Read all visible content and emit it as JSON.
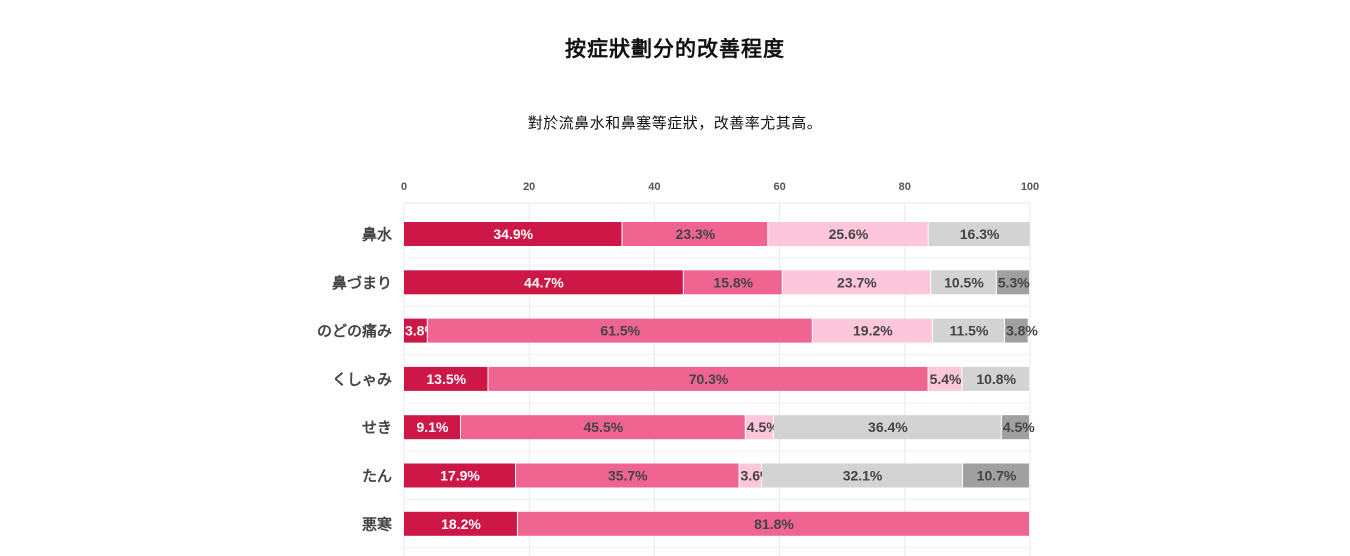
{
  "title": "按症狀劃分的改善程度",
  "subtitle": "對於流鼻水和鼻塞等症狀，改善率尤其高。",
  "colors": {
    "s1": "#cc1747",
    "s2": "#f06492",
    "s3": "#fdc6da",
    "s4": "#d3d3d3",
    "s5": "#a0a0a0",
    "grid": "#e8e8e8",
    "label_light": "#ffffff",
    "label_dark": "#444444"
  },
  "chart_data": {
    "type": "bar",
    "orientation": "horizontal",
    "stacked": true,
    "xlim": [
      0,
      100
    ],
    "xticks": [
      "0",
      "20",
      "40",
      "60",
      "80",
      "100"
    ],
    "categories": [
      "鼻水",
      "鼻づまり",
      "のどの痛み",
      "くしゃみ",
      "せき",
      "たん",
      "悪寒"
    ],
    "series": [
      {
        "values": [
          34.9,
          44.7,
          3.8,
          13.5,
          9.1,
          17.9,
          18.2
        ],
        "labels": [
          "34.9%",
          "44.7%",
          "3.8%",
          "13.5%",
          "9.1%",
          "17.9%",
          "18.2%"
        ]
      },
      {
        "values": [
          23.3,
          15.8,
          61.5,
          70.3,
          45.5,
          35.7,
          81.8
        ],
        "labels": [
          "23.3%",
          "15.8%",
          "61.5%",
          "70.3%",
          "45.5%",
          "35.7%",
          "81.8%"
        ]
      },
      {
        "values": [
          25.6,
          23.7,
          19.2,
          5.4,
          4.5,
          3.6,
          0
        ],
        "labels": [
          "25.6%",
          "23.7%",
          "19.2%",
          "5.4%",
          "4.5%",
          "3.6%",
          ""
        ]
      },
      {
        "values": [
          16.3,
          10.5,
          11.5,
          10.8,
          36.4,
          32.1,
          0
        ],
        "labels": [
          "16.3%",
          "10.5%",
          "11.5%",
          "10.8%",
          "36.4%",
          "32.1%",
          ""
        ]
      },
      {
        "values": [
          0,
          5.3,
          3.8,
          0,
          4.5,
          10.7,
          0
        ],
        "labels": [
          "",
          "5.3%",
          "3.8%",
          "",
          "4.5%",
          "10.7%",
          ""
        ]
      }
    ],
    "grid": true,
    "legend": "none"
  }
}
